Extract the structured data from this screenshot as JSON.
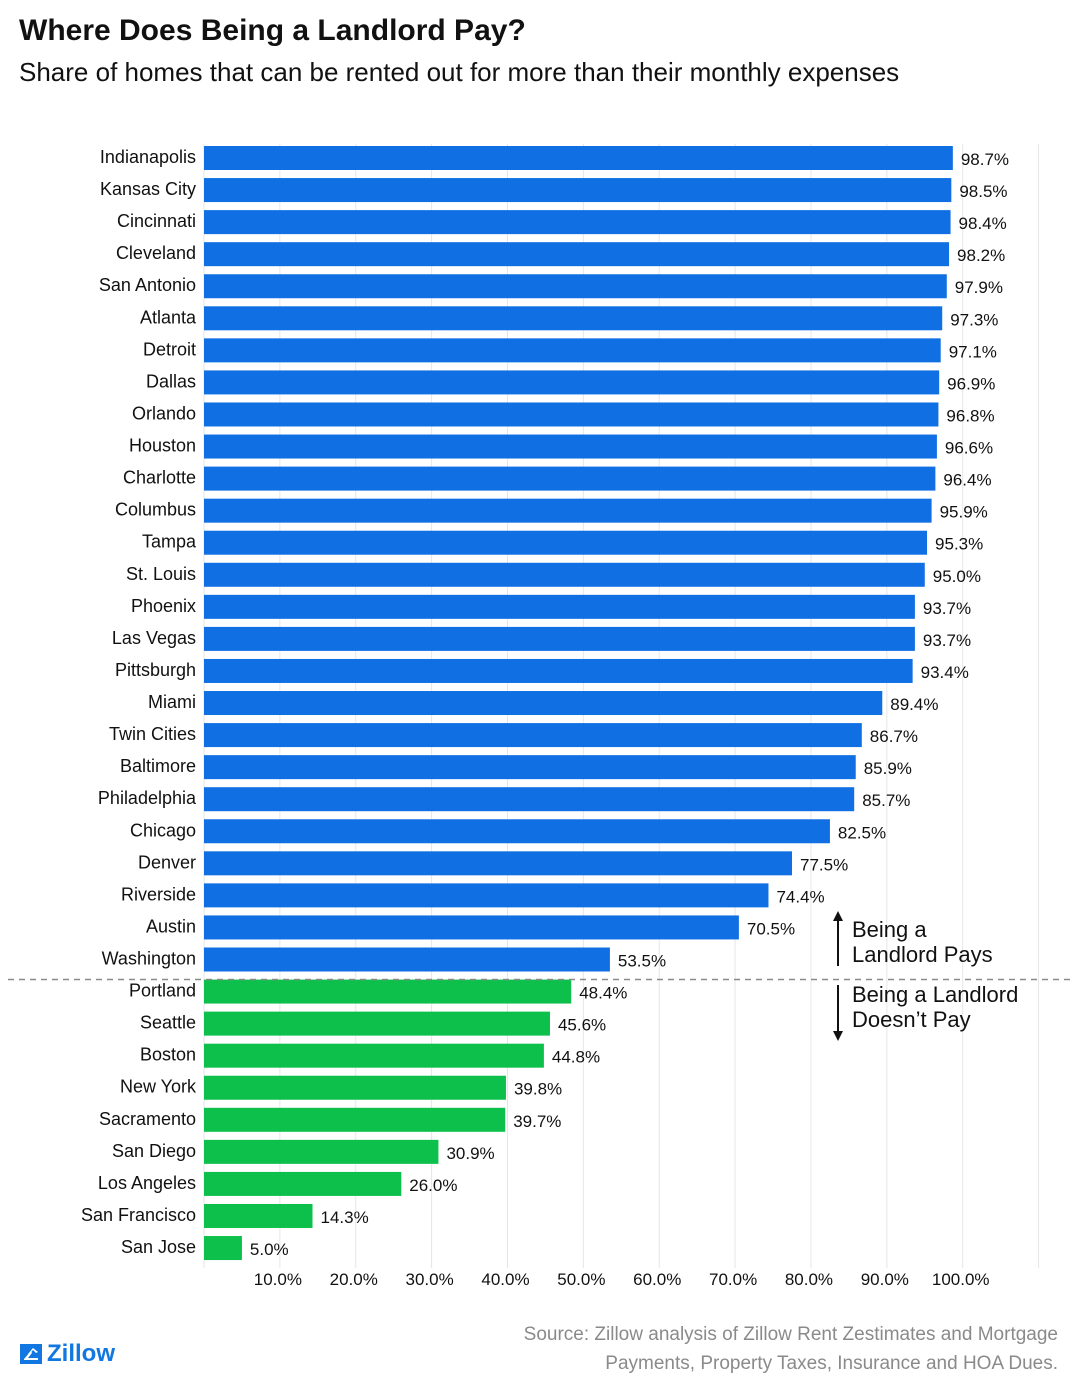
{
  "header": {
    "title": "Where Does Being a Landlord Pay?",
    "subtitle": "Share of homes that can be rented out for more than their monthly expenses"
  },
  "chart_data": {
    "type": "bar",
    "orientation": "horizontal",
    "categories": [
      "Indianapolis",
      "Kansas City",
      "Cincinnati",
      "Cleveland",
      "San Antonio",
      "Atlanta",
      "Detroit",
      "Dallas",
      "Orlando",
      "Houston",
      "Charlotte",
      "Columbus",
      "Tampa",
      "St. Louis",
      "Phoenix",
      "Las Vegas",
      "Pittsburgh",
      "Miami",
      "Twin Cities",
      "Baltimore",
      "Philadelphia",
      "Chicago",
      "Denver",
      "Riverside",
      "Austin",
      "Washington",
      "Portland",
      "Seattle",
      "Boston",
      "New York",
      "Sacramento",
      "San Diego",
      "Los Angeles",
      "San Francisco",
      "San Jose"
    ],
    "values": [
      98.7,
      98.5,
      98.4,
      98.2,
      97.9,
      97.3,
      97.1,
      96.9,
      96.8,
      96.6,
      96.4,
      95.9,
      95.3,
      95.0,
      93.7,
      93.7,
      93.4,
      89.4,
      86.7,
      85.9,
      85.7,
      82.5,
      77.5,
      74.4,
      70.5,
      53.5,
      48.4,
      45.6,
      44.8,
      39.8,
      39.7,
      30.9,
      26.0,
      14.3,
      5.0
    ],
    "value_labels": [
      "98.7%",
      "98.5%",
      "98.4%",
      "98.2%",
      "97.9%",
      "97.3%",
      "97.1%",
      "96.9%",
      "96.8%",
      "96.6%",
      "96.4%",
      "95.9%",
      "95.3%",
      "95.0%",
      "93.7%",
      "93.7%",
      "93.4%",
      "89.4%",
      "86.7%",
      "85.9%",
      "85.7%",
      "82.5%",
      "77.5%",
      "74.4%",
      "70.5%",
      "53.5%",
      "48.4%",
      "45.6%",
      "44.8%",
      "39.8%",
      "39.7%",
      "30.9%",
      "26.0%",
      "14.3%",
      "5.0%"
    ],
    "pays_count": 26,
    "colors": {
      "pays": "#0f6fe3",
      "not_pays": "#0cc04b",
      "grid": "#e6e6e6",
      "divider": "#8a8a8a"
    },
    "xlim": [
      0,
      110
    ],
    "x_ticks": [
      10,
      20,
      30,
      40,
      50,
      60,
      70,
      80,
      90,
      100
    ],
    "x_tick_labels": [
      "10.0%",
      "20.0%",
      "30.0%",
      "40.0%",
      "50.0%",
      "60.0%",
      "70.0%",
      "80.0%",
      "90.0%",
      "100.0%"
    ],
    "grid": true,
    "annotations": {
      "pays": [
        "Being a",
        "Landlord Pays"
      ],
      "not_pays": [
        "Being a Landlord",
        "Doesn’t Pay"
      ]
    }
  },
  "footer": {
    "source_line1": "Source: Zillow analysis of Zillow Rent Zestimates and Mortgage",
    "source_line2": "Payments, Property Taxes, Insurance and HOA Dues.",
    "logo_text": "Zillow",
    "logo_icon": "zillow-house-icon"
  }
}
